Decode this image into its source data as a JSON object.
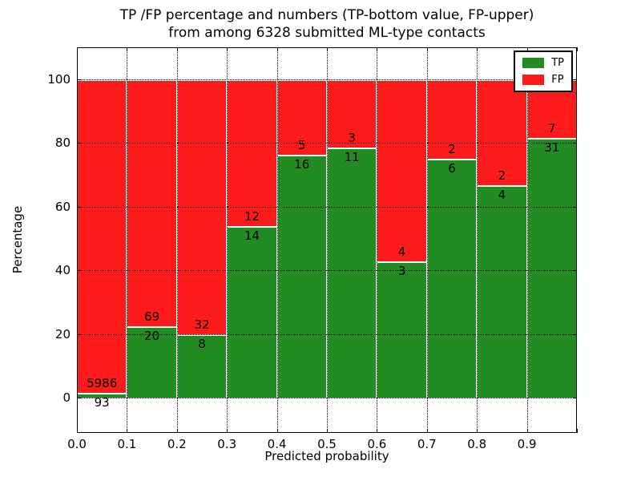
{
  "chart_data": {
    "type": "bar",
    "variant": "stacked-percentage",
    "title_line1": "TP /FP percentage and numbers (TP-bottom value, FP-upper)",
    "title_line2": "from among 6328 submitted ML-type contacts",
    "xlabel": "Predicted probability",
    "ylabel": "Percentage",
    "bin_edges": [
      0.0,
      0.1,
      0.2,
      0.3,
      0.4,
      0.5,
      0.6,
      0.7,
      0.8,
      0.9,
      1.0
    ],
    "series": [
      {
        "name": "TP",
        "color": "#228b22",
        "values": [
          93,
          20,
          8,
          14,
          16,
          11,
          3,
          6,
          4,
          31
        ]
      },
      {
        "name": "FP",
        "color": "#fb1b1b",
        "values": [
          5986,
          69,
          32,
          12,
          5,
          3,
          4,
          2,
          2,
          7
        ]
      }
    ],
    "tp_percent_by_bin": [
      1.53,
      22.47,
      20.0,
      53.85,
      76.19,
      78.57,
      42.86,
      75.0,
      66.67,
      81.58
    ],
    "xticks": [
      "0.0",
      "0.1",
      "0.2",
      "0.3",
      "0.4",
      "0.5",
      "0.6",
      "0.7",
      "0.8",
      "0.9"
    ],
    "yticks": [
      0,
      20,
      40,
      60,
      80,
      100
    ],
    "xlim": [
      0,
      1
    ],
    "ylim": [
      -11,
      110
    ],
    "grid": "dotted-both-axes",
    "legend": {
      "position": "upper-right",
      "entries": [
        {
          "label": "TP",
          "color": "#228b22"
        },
        {
          "label": "FP",
          "color": "#fb1b1b"
        }
      ]
    }
  }
}
